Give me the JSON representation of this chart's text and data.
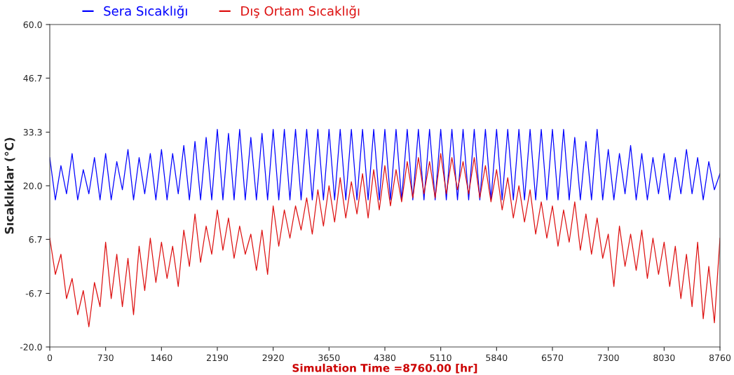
{
  "chart_data": {
    "type": "line",
    "xlabel": "Simulation Time =8760.00 [hr]",
    "ylabel": "Sıcaklıklar (°C)",
    "x": [
      0,
      73,
      146,
      219,
      292,
      365,
      438,
      511,
      584,
      657,
      730,
      803,
      876,
      949,
      1022,
      1095,
      1168,
      1241,
      1314,
      1387,
      1460,
      1533,
      1606,
      1679,
      1752,
      1825,
      1898,
      1971,
      2044,
      2117,
      2190,
      2263,
      2336,
      2409,
      2482,
      2555,
      2628,
      2701,
      2774,
      2847,
      2920,
      2993,
      3066,
      3139,
      3212,
      3285,
      3358,
      3431,
      3504,
      3577,
      3650,
      3723,
      3796,
      3869,
      3942,
      4015,
      4088,
      4161,
      4234,
      4307,
      4380,
      4453,
      4526,
      4599,
      4672,
      4745,
      4818,
      4891,
      4964,
      5037,
      5110,
      5183,
      5256,
      5329,
      5402,
      5475,
      5548,
      5621,
      5694,
      5767,
      5840,
      5913,
      5986,
      6059,
      6132,
      6205,
      6278,
      6351,
      6424,
      6497,
      6570,
      6643,
      6716,
      6789,
      6862,
      6935,
      7008,
      7081,
      7154,
      7227,
      7300,
      7373,
      7446,
      7519,
      7592,
      7665,
      7738,
      7811,
      7884,
      7957,
      8030,
      8103,
      8176,
      8249,
      8322,
      8395,
      8468,
      8541,
      8614,
      8687,
      8760
    ],
    "series": [
      {
        "name": "Sera Sıcaklığı",
        "color": "#0000ff",
        "values": [
          27,
          16.5,
          25,
          18,
          28,
          16.5,
          24,
          18,
          27,
          16.5,
          28,
          16.5,
          26,
          19,
          29,
          16.5,
          27,
          18,
          28,
          16.5,
          29,
          16.5,
          28,
          18,
          30,
          16.5,
          31,
          16.5,
          32,
          16.5,
          34,
          16.5,
          33,
          16.5,
          34,
          16.5,
          32,
          16.5,
          33,
          16.5,
          34,
          16.5,
          34,
          16.5,
          34,
          16.5,
          34,
          16.5,
          34,
          16.5,
          34,
          16.5,
          34,
          16.5,
          34,
          16.5,
          34,
          16.5,
          34,
          16.5,
          34,
          16.5,
          34,
          16.5,
          34,
          16.5,
          34,
          16.5,
          34,
          16.5,
          34,
          16.5,
          34,
          16.5,
          34,
          16.5,
          34,
          16.5,
          34,
          16.5,
          34,
          16.5,
          34,
          16.5,
          34,
          16.5,
          34,
          16.5,
          34,
          16.5,
          34,
          16.5,
          34,
          16.5,
          32,
          16.5,
          31,
          16.5,
          34,
          16.5,
          29,
          16.5,
          28,
          18,
          30,
          16.5,
          28,
          16.5,
          27,
          18,
          28,
          16.5,
          27,
          18,
          29,
          18,
          27,
          16.5,
          26,
          19,
          23
        ]
      },
      {
        "name": "Dış Ortam Sıcaklığı",
        "color": "#dd1111",
        "values": [
          7,
          -2,
          3,
          -8,
          -3,
          -12,
          -6,
          -15,
          -4,
          -10,
          6,
          -8,
          3,
          -10,
          2,
          -12,
          5,
          -6,
          7,
          -4,
          6,
          -3,
          5,
          -5,
          9,
          0,
          13,
          1,
          10,
          3,
          14,
          4,
          12,
          2,
          10,
          3,
          8,
          -1,
          9,
          -2,
          15,
          5,
          14,
          7,
          15,
          9,
          17,
          8,
          19,
          10,
          20,
          11,
          22,
          12,
          21,
          13,
          23,
          12,
          24,
          14,
          25,
          15,
          24,
          16,
          26,
          17,
          27,
          18,
          26,
          17,
          28,
          18,
          27,
          19,
          26,
          18,
          27,
          17,
          25,
          16,
          24,
          14,
          22,
          12,
          20,
          11,
          19,
          8,
          16,
          7,
          15,
          5,
          14,
          6,
          16,
          4,
          13,
          3,
          12,
          2,
          8,
          -5,
          10,
          0,
          8,
          -1,
          9,
          -3,
          7,
          -2,
          6,
          -5,
          5,
          -8,
          3,
          -10,
          6,
          -13,
          0,
          -14,
          7
        ]
      }
    ],
    "xlim": [
      0,
      8760
    ],
    "ylim": [
      -20,
      60
    ],
    "xticks": [
      0,
      730,
      1460,
      2190,
      2920,
      3650,
      4380,
      5110,
      5840,
      6570,
      7300,
      8030,
      8760
    ],
    "yticks": [
      {
        "value": -20,
        "label": "-20.0"
      },
      {
        "value": -6.7,
        "label": "-6.7"
      },
      {
        "value": 6.7,
        "label": "6.7"
      },
      {
        "value": 20,
        "label": "20.0"
      },
      {
        "value": 33.3,
        "label": "33.3"
      },
      {
        "value": 46.7,
        "label": "46.7"
      },
      {
        "value": 60,
        "label": "60.0"
      }
    ],
    "grid": false,
    "legend": "top left"
  }
}
